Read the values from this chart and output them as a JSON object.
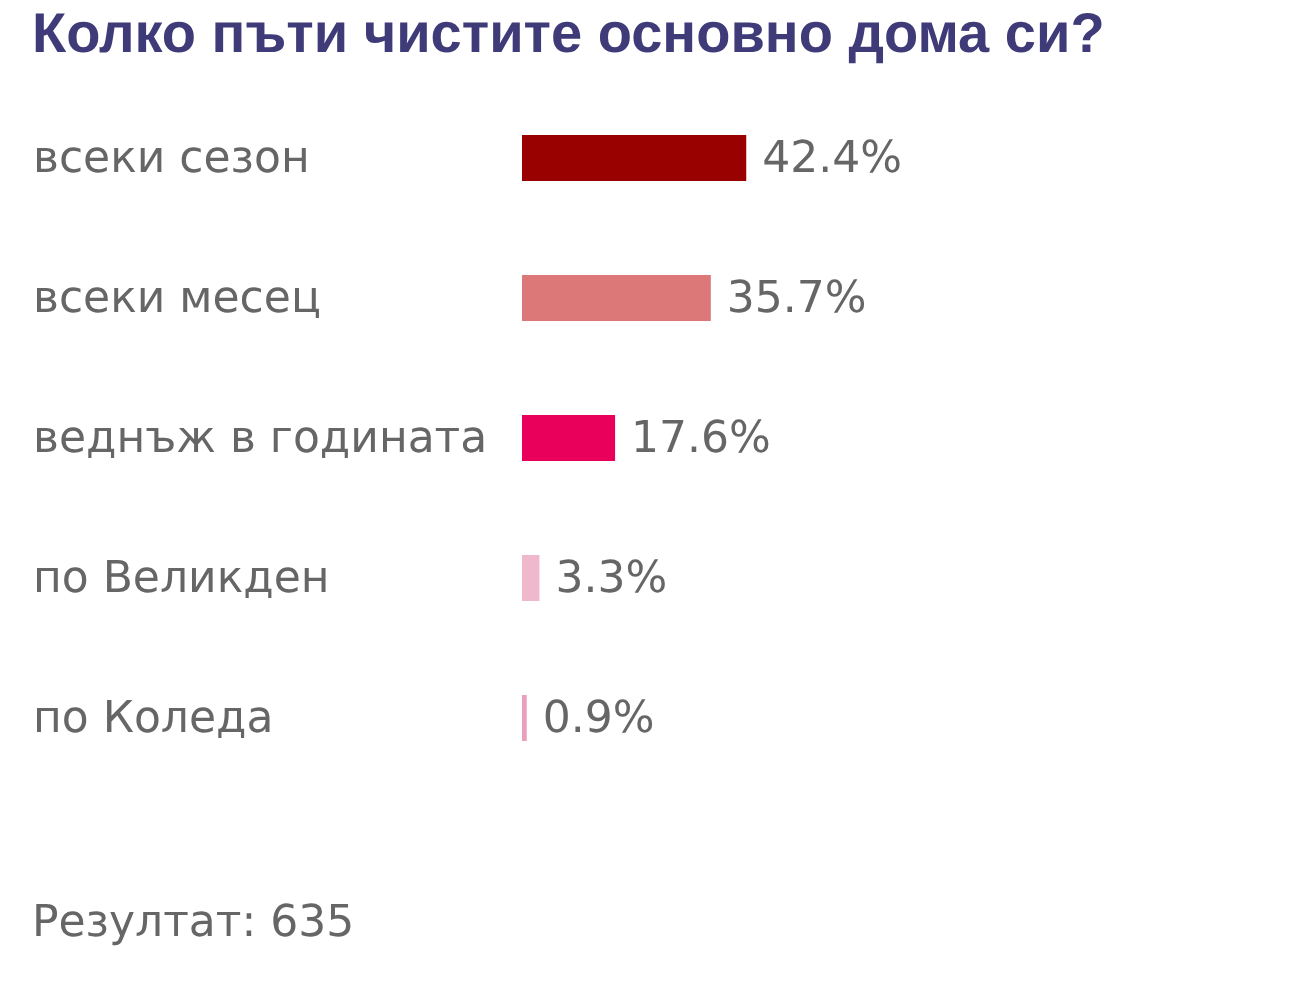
{
  "chart_data": {
    "type": "bar",
    "orientation": "horizontal",
    "title": "Колко пъти чистите основно дома си?",
    "categories": [
      "всеки сезон",
      "всеки месец",
      "веднъж в годината",
      "по Великден",
      "по Коледа"
    ],
    "values": [
      42.4,
      35.7,
      17.6,
      3.3,
      0.9
    ],
    "colors": [
      "#990000",
      "#dc7878",
      "#e8005a",
      "#f0b8cc",
      "#e8a0bc"
    ],
    "value_labels": [
      "42.4%",
      "35.7%",
      "17.6%",
      "3.3%",
      "0.9%"
    ],
    "annotations": [
      "Резултат: 635"
    ]
  }
}
